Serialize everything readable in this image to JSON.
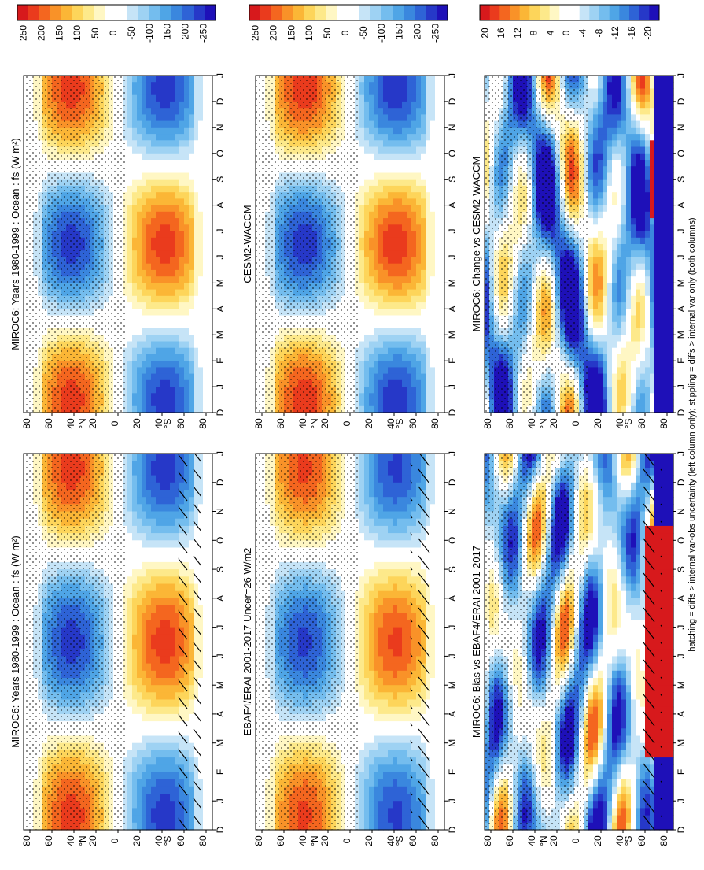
{
  "figure": {
    "footnote": "hatching = diffs > internal var-obs uncertainty (left column only); stippling = diffs > internal var only (both columns)"
  },
  "chart_data": [
    {
      "type": "heatmap",
      "title": "MIROC6: Years 1980-1999 : Ocean : fs (W m²)",
      "x_ticks": [
        "D",
        "J",
        "F",
        "M",
        "A",
        "M",
        "J",
        "J",
        "A",
        "S",
        "O",
        "N",
        "D",
        "J"
      ],
      "y_ticks": [
        "80",
        "60",
        "40",
        "20",
        "0",
        "20",
        "40",
        "60",
        "80"
      ],
      "y_hemi": [
        "N",
        "S"
      ],
      "colorbar": [
        "250",
        "200",
        "150",
        "100",
        "50",
        "0",
        "-50",
        "-100",
        "-150",
        "-200",
        "-250"
      ],
      "range": [
        -275,
        275
      ],
      "hatch": true
    },
    {
      "type": "heatmap",
      "title": "MIROC6: Years 1980-1999 : Ocean : fs (W m²)",
      "x_ticks": [
        "D",
        "J",
        "F",
        "M",
        "A",
        "M",
        "J",
        "J",
        "A",
        "S",
        "O",
        "N",
        "D",
        "J"
      ],
      "y_ticks": [
        "80",
        "60",
        "40",
        "20",
        "0",
        "20",
        "40",
        "60",
        "80"
      ],
      "y_hemi": [
        "N",
        "S"
      ],
      "colorbar": [
        "250",
        "200",
        "150",
        "100",
        "50",
        "0",
        "-50",
        "-100",
        "-150",
        "-200",
        "-250"
      ],
      "range": [
        -275,
        275
      ],
      "hatch": false
    },
    {
      "type": "heatmap",
      "title": "EBAF4/ERAI 2001-2017 Uncer=26 W/m2",
      "x_ticks": [
        "D",
        "J",
        "F",
        "M",
        "A",
        "M",
        "J",
        "J",
        "A",
        "S",
        "O",
        "N",
        "D",
        "J"
      ],
      "y_ticks": [
        "80",
        "60",
        "40",
        "20",
        "0",
        "20",
        "40",
        "60",
        "80"
      ],
      "y_hemi": [
        "N",
        "S"
      ],
      "colorbar": [
        "250",
        "200",
        "150",
        "100",
        "50",
        "0",
        "-50",
        "-100",
        "-150",
        "-200",
        "-250"
      ],
      "range": [
        -275,
        275
      ],
      "hatch": true
    },
    {
      "type": "heatmap",
      "title": "CESM2-WACCM",
      "x_ticks": [
        "D",
        "J",
        "F",
        "M",
        "A",
        "M",
        "J",
        "J",
        "A",
        "S",
        "O",
        "N",
        "D",
        "J"
      ],
      "y_ticks": [
        "80",
        "60",
        "40",
        "20",
        "0",
        "20",
        "40",
        "60",
        "80"
      ],
      "y_hemi": [
        "N",
        "S"
      ],
      "colorbar": [
        "250",
        "200",
        "150",
        "100",
        "50",
        "0",
        "-50",
        "-100",
        "-150",
        "-200",
        "-250"
      ],
      "range": [
        -275,
        275
      ],
      "hatch": false
    },
    {
      "type": "heatmap",
      "title": "MIROC6: Bias vs EBAF4/ERAI 2001-2017",
      "x_ticks": [
        "D",
        "J",
        "F",
        "M",
        "A",
        "M",
        "J",
        "J",
        "A",
        "S",
        "O",
        "N",
        "D",
        "J"
      ],
      "y_ticks": [
        "80",
        "60",
        "40",
        "20",
        "0",
        "20",
        "40",
        "60",
        "80"
      ],
      "y_hemi": [
        "N",
        "S"
      ],
      "colorbar": [
        "20",
        "16",
        "12",
        "8",
        "4",
        "0",
        "-4",
        "-8",
        "-12",
        "-16",
        "-20"
      ],
      "range": [
        -22,
        22
      ],
      "hatch": true
    },
    {
      "type": "heatmap",
      "title": "MIROC6: Change vs CESM2-WACCM",
      "x_ticks": [
        "D",
        "J",
        "F",
        "M",
        "A",
        "M",
        "J",
        "J",
        "A",
        "S",
        "O",
        "N",
        "D",
        "J"
      ],
      "y_ticks": [
        "80",
        "60",
        "40",
        "20",
        "0",
        "20",
        "40",
        "60",
        "80"
      ],
      "y_hemi": [
        "N",
        "S"
      ],
      "colorbar": [
        "20",
        "16",
        "12",
        "8",
        "4",
        "0",
        "-4",
        "-8",
        "-12",
        "-16",
        "-20"
      ],
      "range": [
        -22,
        22
      ],
      "hatch": false
    }
  ]
}
